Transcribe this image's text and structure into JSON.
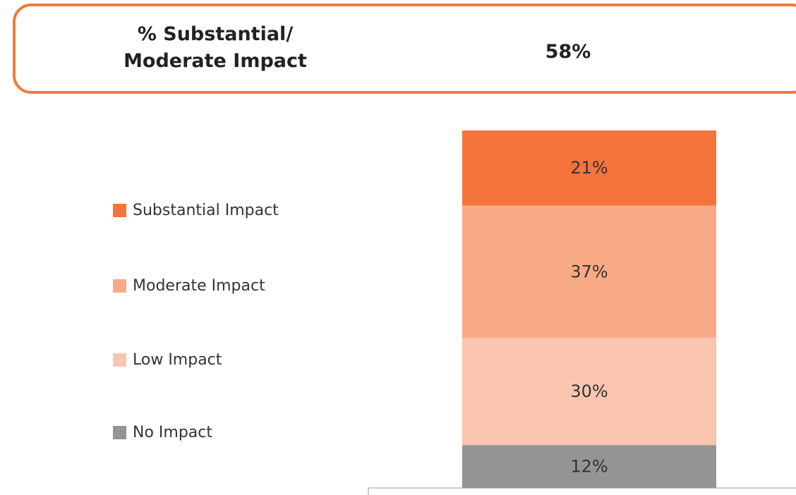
{
  "chart_data": {
    "type": "stacked_bar",
    "summary_label": "% Substantial/ Moderate Impact",
    "summary_value": "58%",
    "categories": [
      null
    ],
    "series": [
      {
        "name": "No Impact",
        "color": "#949494",
        "values": [
          12
        ],
        "value_labels": [
          "12%"
        ]
      },
      {
        "name": "Low Impact",
        "color": "#f9c5ae",
        "values": [
          30
        ],
        "value_labels": [
          "30%"
        ]
      },
      {
        "name": "Moderate Impact",
        "color": "#f8aa87",
        "values": [
          37
        ],
        "value_labels": [
          "37%"
        ]
      },
      {
        "name": "Substantial Impact",
        "color": "#f4743b",
        "values": [
          21
        ],
        "value_labels": [
          "21%"
        ]
      }
    ]
  }
}
